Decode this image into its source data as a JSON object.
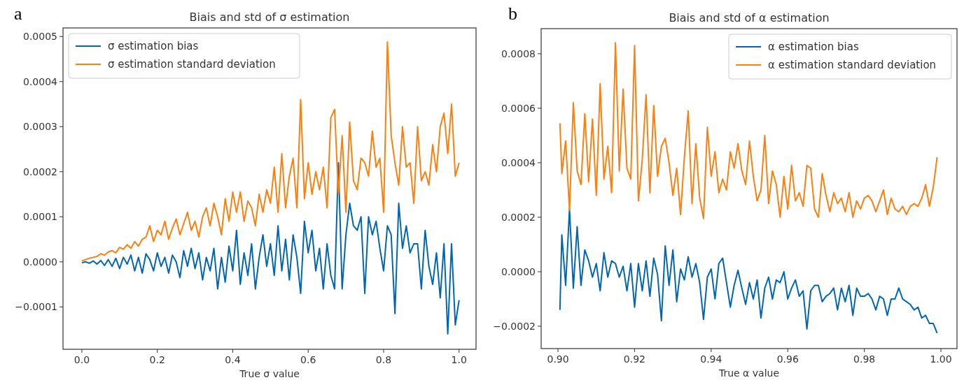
{
  "chart_data": [
    {
      "type": "line",
      "title": "Biais and std of σ estimation",
      "xlabel": "True σ value",
      "annotations": [
        "a"
      ],
      "legend": "top left",
      "grid": false,
      "x": [
        0,
        0.01,
        0.02,
        0.03,
        0.04,
        0.05,
        0.06,
        0.07,
        0.08,
        0.09,
        0.1,
        0.11,
        0.12,
        0.13,
        0.14,
        0.15,
        0.16,
        0.17,
        0.18,
        0.19,
        0.2,
        0.21,
        0.22,
        0.23,
        0.24,
        0.25,
        0.26,
        0.27,
        0.28,
        0.29,
        0.3,
        0.31,
        0.32,
        0.33,
        0.34,
        0.35,
        0.36,
        0.37,
        0.38,
        0.39,
        0.4,
        0.41,
        0.42,
        0.43,
        0.44,
        0.45,
        0.46,
        0.47,
        0.48,
        0.49,
        0.5,
        0.51,
        0.52,
        0.53,
        0.54,
        0.55,
        0.56,
        0.57,
        0.58,
        0.59,
        0.6,
        0.61,
        0.62,
        0.63,
        0.64,
        0.65,
        0.66,
        0.67,
        0.68,
        0.69,
        0.7,
        0.71,
        0.72,
        0.73,
        0.74,
        0.75,
        0.76,
        0.77,
        0.78,
        0.79,
        0.8,
        0.81,
        0.82,
        0.83,
        0.84,
        0.85,
        0.86,
        0.87,
        0.88,
        0.89,
        0.9,
        0.91,
        0.92,
        0.93,
        0.94,
        0.95,
        0.96,
        0.97,
        0.98,
        0.99,
        1.0
      ],
      "xlim": [
        -0.05,
        1.045
      ],
      "xticks": [
        {
          "value": 0,
          "label": "0.0"
        },
        {
          "value": 0.2,
          "label": "0.2"
        },
        {
          "value": 0.4,
          "label": "0.4"
        },
        {
          "value": 0.6,
          "label": "0.6"
        },
        {
          "value": 0.8,
          "label": "0.8"
        },
        {
          "value": 1,
          "label": "1.0"
        }
      ],
      "ylim": [
        -0.000194,
        0.000519
      ],
      "yticks": [
        {
          "value": -0.0001,
          "label": "−0.0001"
        },
        {
          "value": 0,
          "label": "0.0000"
        },
        {
          "value": 0.0001,
          "label": "0.0001"
        },
        {
          "value": 0.0002,
          "label": "0.0002"
        },
        {
          "value": 0.0003,
          "label": "0.0003"
        },
        {
          "value": 0.0004,
          "label": "0.0004"
        },
        {
          "value": 0.0005,
          "label": "0.0005"
        }
      ],
      "series": [
        {
          "name": "σ estimation bias",
          "color": "#0066b3",
          "values": [
            -2e-06,
            0,
            -3e-06,
            2e-06,
            -5e-06,
            3e-06,
            -8e-06,
            5e-06,
            -1e-05,
            8e-06,
            -1.5e-05,
            1e-05,
            -5e-06,
            1.5e-05,
            -2e-05,
            1e-05,
            -2.5e-05,
            1.8e-05,
            5e-06,
            -2e-05,
            2e-05,
            -1e-05,
            1e-05,
            -2.5e-05,
            1.5e-05,
            0,
            -3.5e-05,
            2.5e-05,
            -1e-05,
            3e-05,
            -1.5e-05,
            2e-05,
            -4e-05,
            1e-05,
            -2e-05,
            3e-05,
            -6e-05,
            1e-05,
            -4.5e-05,
            3.5e-05,
            -2e-05,
            7e-05,
            -5e-05,
            2e-05,
            -3e-05,
            4e-05,
            -6e-05,
            1e-05,
            6e-05,
            -1e-05,
            4e-05,
            -3e-05,
            8e-05,
            -2e-05,
            5e-05,
            -4e-05,
            6e-05,
            1e-05,
            -7e-05,
            9e-05,
            2e-05,
            7e-05,
            -2e-05,
            3e-05,
            -6e-05,
            4e-05,
            -3e-05,
            -6e-05,
            0.00022,
            -6e-05,
            6e-05,
            0.00013,
            8e-05,
            7e-05,
            0.0001,
            -7e-05,
            0.0001,
            6e-05,
            9e-05,
            3e-05,
            -2e-05,
            8e-05,
            6e-05,
            -0.000115,
            0.00013,
            3e-05,
            8e-05,
            2e-05,
            4e-05,
            4e-05,
            -6e-05,
            7e-05,
            -1e-05,
            -5e-05,
            2e-05,
            -8e-05,
            4e-05,
            -0.00016,
            4e-05,
            -0.00014,
            -8.5e-05
          ]
        },
        {
          "name": "σ estimation standard deviation",
          "color": "#ff7f0e",
          "values": [
            2e-06,
            5e-06,
            8e-06,
            1e-05,
            1.2e-05,
            1.8e-05,
            1.5e-05,
            2.2e-05,
            2.5e-05,
            2e-05,
            3.2e-05,
            2.8e-05,
            3.8e-05,
            3e-05,
            4.5e-05,
            3.5e-05,
            5e-05,
            5.5e-05,
            8e-05,
            4.5e-05,
            7e-05,
            6e-05,
            9e-05,
            5e-05,
            7.5e-05,
            9.5e-05,
            6e-05,
            8.5e-05,
            0.00011,
            7e-05,
            9e-05,
            5.5e-05,
            0.0001,
            0.00012,
            8e-05,
            0.00013,
            0.0001,
            6e-05,
            0.00014,
            9e-05,
            0.000155,
            0.00011,
            0.000155,
            9e-05,
            0.000135,
            0.00012,
            8e-05,
            0.00015,
            0.00011,
            0.00016,
            0.00013,
            0.00021,
            0.00011,
            0.00024,
            0.00012,
            0.00019,
            0.00023,
            0.00012,
            0.00036,
            0.00014,
            0.00022,
            0.00015,
            0.0002,
            0.00016,
            0.00021,
            0.00012,
            0.00032,
            0.000338,
            0.00015,
            0.00028,
            0.00011,
            0.00031,
            0.00018,
            0.00016,
            0.00023,
            0.00022,
            0.00019,
            0.00029,
            0.00021,
            0.00023,
            0.00011,
            0.000488,
            0.00028,
            0.00022,
            0.00017,
            0.0003,
            0.00021,
            0.00022,
            0.00013,
            0.0003,
            0.00018,
            0.0002,
            0.00017,
            0.00026,
            0.0002,
            0.0003,
            0.00033,
            0.00024,
            0.00035,
            0.00019,
            0.00022
          ]
        }
      ]
    },
    {
      "type": "line",
      "title": "Biais and std of α estimation",
      "xlabel": "True α value",
      "annotations": [
        "b"
      ],
      "legend": "top right",
      "grid": false,
      "x": [
        0.9005,
        0.901,
        0.902,
        0.903,
        0.904,
        0.905,
        0.906,
        0.907,
        0.908,
        0.909,
        0.91,
        0.911,
        0.912,
        0.913,
        0.914,
        0.915,
        0.916,
        0.917,
        0.918,
        0.919,
        0.92,
        0.921,
        0.922,
        0.923,
        0.924,
        0.925,
        0.926,
        0.927,
        0.928,
        0.929,
        0.93,
        0.931,
        0.932,
        0.933,
        0.934,
        0.935,
        0.936,
        0.937,
        0.938,
        0.939,
        0.94,
        0.941,
        0.942,
        0.943,
        0.944,
        0.945,
        0.946,
        0.947,
        0.948,
        0.949,
        0.95,
        0.951,
        0.952,
        0.953,
        0.954,
        0.955,
        0.956,
        0.957,
        0.958,
        0.959,
        0.96,
        0.961,
        0.962,
        0.963,
        0.964,
        0.965,
        0.966,
        0.967,
        0.968,
        0.969,
        0.97,
        0.971,
        0.972,
        0.973,
        0.974,
        0.975,
        0.976,
        0.977,
        0.978,
        0.979,
        0.98,
        0.981,
        0.982,
        0.983,
        0.984,
        0.985,
        0.986,
        0.987,
        0.988,
        0.989,
        0.99,
        0.991,
        0.992,
        0.993,
        0.994,
        0.995,
        0.996,
        0.997,
        0.998,
        0.999
      ],
      "xlim": [
        0.8956,
        1.0042
      ],
      "xticks": [
        {
          "value": 0.9,
          "label": "0.90"
        },
        {
          "value": 0.92,
          "label": "0.92"
        },
        {
          "value": 0.94,
          "label": "0.94"
        },
        {
          "value": 0.96,
          "label": "0.96"
        },
        {
          "value": 0.98,
          "label": "0.98"
        },
        {
          "value": 1,
          "label": "1.00"
        }
      ],
      "ylim": [
        -0.000282,
        0.000892
      ],
      "yticks": [
        {
          "value": -0.0002,
          "label": "−0.0002"
        },
        {
          "value": 0,
          "label": "0.0000"
        },
        {
          "value": 0.0002,
          "label": "0.0002"
        },
        {
          "value": 0.0004,
          "label": "0.0004"
        },
        {
          "value": 0.0006,
          "label": "0.0006"
        },
        {
          "value": 0.0008,
          "label": "0.0008"
        }
      ],
      "series": [
        {
          "name": "α estimation bias",
          "color": "#0066b3",
          "values": [
            -0.00014,
            0.000135,
            -5e-05,
            0.00023,
            -6e-05,
            0.000165,
            -5e-05,
            8e-05,
            4e-05,
            -2e-05,
            3e-05,
            -7e-05,
            7e-05,
            -2e-05,
            4e-05,
            3e-05,
            -2e-05,
            2e-05,
            -7e-05,
            3e-05,
            -0.00013,
            3e-05,
            -7e-05,
            4e-05,
            -9e-05,
            5e-05,
            -1e-05,
            -0.00018,
            9.5e-05,
            -5e-05,
            8e-05,
            -0.00011,
            1e-05,
            -3e-05,
            5.5e-05,
            -2e-05,
            3e-05,
            -4e-05,
            -0.000175,
            -2e-05,
            1e-05,
            -0.0001,
            3e-05,
            5e-05,
            -4e-05,
            -0.00013,
            -5e-05,
            5e-06,
            -6e-05,
            -0.00012,
            -4e-05,
            -0.0001,
            -3e-05,
            -0.00017,
            -6e-05,
            -2e-05,
            -0.0001,
            -3e-05,
            -4e-05,
            0,
            -0.0001,
            -6e-05,
            -3e-05,
            -9e-05,
            -7e-05,
            -0.00021,
            -7e-05,
            -5e-05,
            -5e-05,
            -0.00011,
            -9e-05,
            -8e-05,
            -6e-05,
            -0.00014,
            -6e-05,
            -0.00011,
            -5e-05,
            -0.00016,
            -6e-05,
            -9e-05,
            -9e-05,
            -8e-05,
            -0.0001,
            -0.00014,
            -9e-05,
            -0.0001,
            -0.00016,
            -0.0001,
            -0.0001,
            -6e-05,
            -0.0001,
            -0.00011,
            -0.00012,
            -0.00014,
            -0.00013,
            -0.00017,
            -0.00016,
            -0.00019,
            -0.00019,
            -0.000225
          ]
        },
        {
          "name": "α estimation standard deviation",
          "color": "#ff7f0e",
          "values": [
            0.000545,
            0.00036,
            0.00048,
            0.000225,
            0.00062,
            0.00037,
            0.00032,
            0.00058,
            0.00033,
            0.00056,
            0.00028,
            0.00069,
            0.00034,
            0.00046,
            0.00029,
            0.00084,
            0.00037,
            0.00067,
            0.00038,
            0.00034,
            0.00083,
            0.00026,
            0.00041,
            0.00065,
            0.00029,
            0.00061,
            0.00035,
            0.00046,
            0.00049,
            0.0004,
            0.00028,
            0.00038,
            0.00021,
            0.00042,
            0.00059,
            0.00025,
            0.00047,
            0.00027,
            0.000195,
            0.00053,
            0.00035,
            0.00044,
            0.00029,
            0.00034,
            0.0003,
            0.00044,
            0.00038,
            0.00047,
            0.00037,
            0.00032,
            0.00048,
            0.00035,
            0.00026,
            0.0003,
            0.0005,
            0.00025,
            0.00037,
            0.00032,
            0.0002,
            0.00035,
            0.00023,
            0.00039,
            0.00026,
            0.00029,
            0.00024,
            0.00039,
            0.00038,
            0.00023,
            0.0002,
            0.00036,
            0.00028,
            0.00022,
            0.00029,
            0.00025,
            0.00027,
            0.00022,
            0.00029,
            0.0002,
            0.00026,
            0.00023,
            0.00027,
            0.00028,
            0.00026,
            0.00022,
            0.00026,
            0.0003,
            0.00021,
            0.00027,
            0.00023,
            0.00022,
            0.00024,
            0.00021,
            0.00024,
            0.00025,
            0.00024,
            0.00027,
            0.00032,
            0.00024,
            0.00031,
            0.00042
          ]
        }
      ]
    }
  ]
}
